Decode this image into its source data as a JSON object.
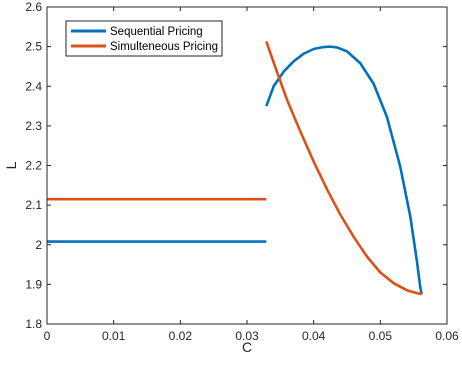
{
  "chart_data": {
    "type": "line",
    "title": "",
    "xlabel": "C",
    "ylabel": "L",
    "xlim": [
      0,
      0.06
    ],
    "ylim": [
      1.8,
      2.6
    ],
    "xticks": [
      0,
      0.01,
      0.02,
      0.03,
      0.04,
      0.05,
      0.06
    ],
    "yticks": [
      1.8,
      1.9,
      2.0,
      2.1,
      2.2,
      2.3,
      2.4,
      2.5,
      2.6
    ],
    "xtick_labels": [
      "0",
      "0.01",
      "0.02",
      "0.03",
      "0.04",
      "0.05",
      "0.06"
    ],
    "ytick_labels": [
      "1.8",
      "1.9",
      "2",
      "2.1",
      "2.2",
      "2.3",
      "2.4",
      "2.5",
      "2.6"
    ],
    "grid": false,
    "legend_position": "top-left",
    "series": [
      {
        "name": "Sequential Pricing",
        "color": "#0072BD",
        "segments": [
          {
            "x": [
              0,
              0.0329
            ],
            "y": [
              2.008,
              2.008
            ]
          },
          {
            "x": [
              0.0329,
              0.034,
              0.0355,
              0.037,
              0.0385,
              0.04,
              0.0415,
              0.0425,
              0.0435,
              0.045,
              0.047,
              0.049,
              0.051,
              0.053,
              0.0545,
              0.0555,
              0.056,
              0.0562
            ],
            "y": [
              2.35,
              2.4,
              2.437,
              2.463,
              2.482,
              2.494,
              2.499,
              2.5,
              2.498,
              2.488,
              2.458,
              2.406,
              2.322,
              2.196,
              2.071,
              1.957,
              1.892,
              1.875
            ]
          }
        ]
      },
      {
        "name": "Simulteneous Pricing",
        "color": "#D95319",
        "segments": [
          {
            "x": [
              0,
              0.0329
            ],
            "y": [
              2.115,
              2.115
            ]
          },
          {
            "x": [
              0.0329,
              0.0345,
              0.036,
              0.038,
              0.04,
              0.042,
              0.044,
              0.046,
              0.048,
              0.05,
              0.052,
              0.054,
              0.0555,
              0.0562
            ],
            "y": [
              2.513,
              2.436,
              2.366,
              2.286,
              2.21,
              2.14,
              2.076,
              2.02,
              1.97,
              1.93,
              1.903,
              1.885,
              1.878,
              1.875
            ]
          }
        ]
      }
    ]
  }
}
